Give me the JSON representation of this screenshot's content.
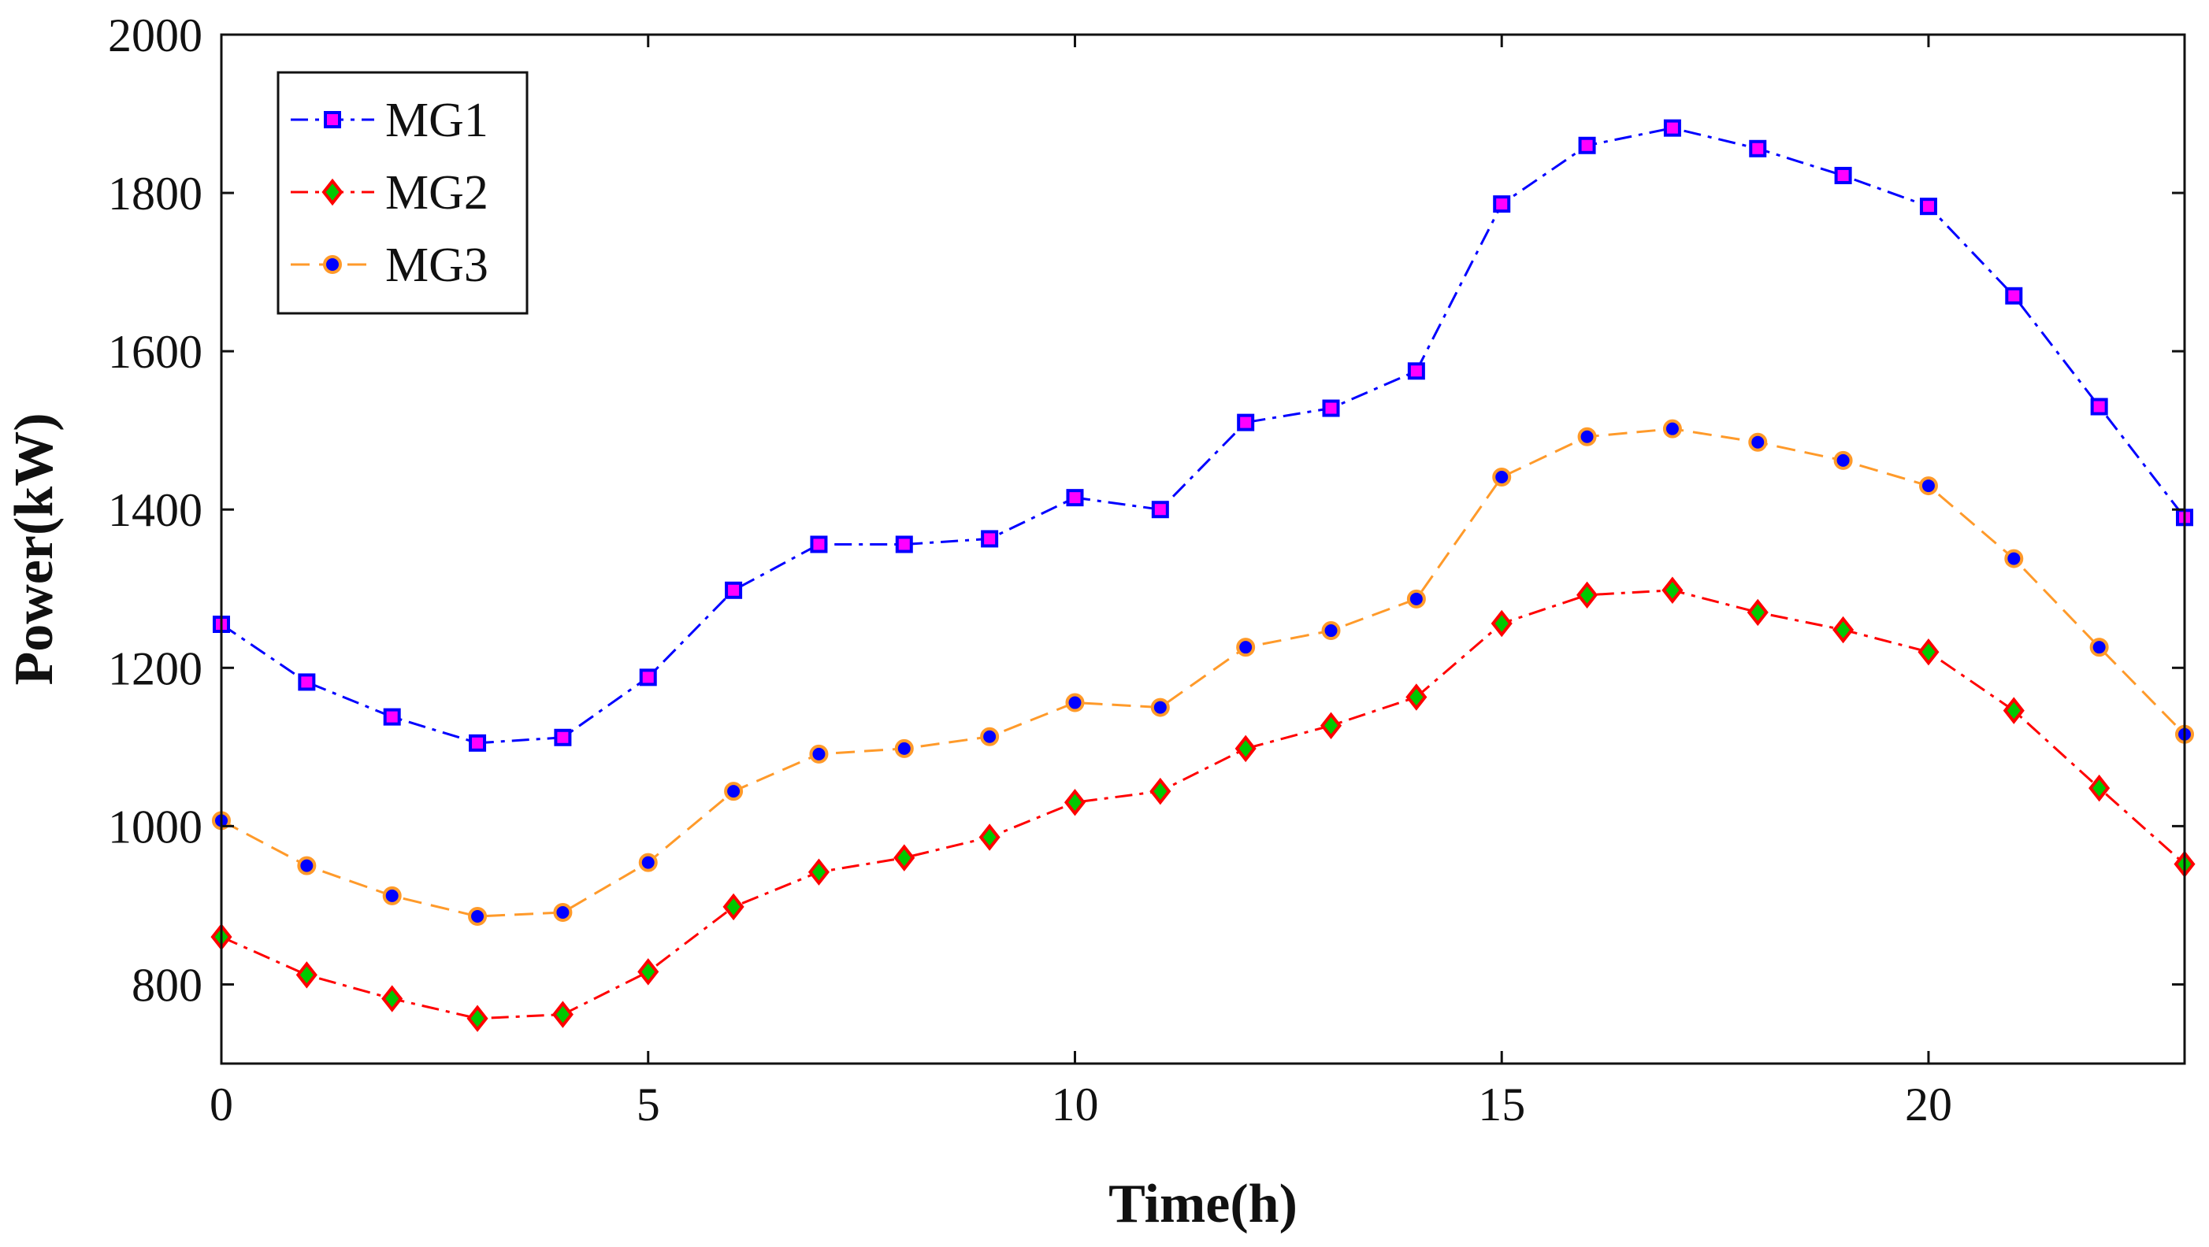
{
  "chart_data": {
    "type": "line",
    "title": "",
    "xlabel": "Time(h)",
    "ylabel": "Power(kW)",
    "xlim": [
      0,
      23
    ],
    "ylim": [
      700,
      2000
    ],
    "xticks": [
      0,
      5,
      10,
      15,
      20
    ],
    "yticks": [
      800,
      1000,
      1200,
      1400,
      1600,
      1800,
      2000
    ],
    "grid": false,
    "legend_position": "top-left",
    "x": [
      0,
      1,
      2,
      3,
      4,
      5,
      6,
      7,
      8,
      9,
      10,
      11,
      12,
      13,
      14,
      15,
      16,
      17,
      18,
      19,
      20,
      21,
      22,
      23
    ],
    "series": [
      {
        "name": "MG1",
        "marker": "square",
        "line_color": "#0000ff",
        "marker_face": "#ff00ff",
        "marker_edge": "#0000ff",
        "dash": "dash-dot",
        "values": [
          1255,
          1182,
          1138,
          1105,
          1112,
          1188,
          1298,
          1356,
          1356,
          1363,
          1415,
          1400,
          1510,
          1528,
          1575,
          1786,
          1860,
          1882,
          1856,
          1822,
          1783,
          1670,
          1530,
          1390
        ]
      },
      {
        "name": "MG2",
        "marker": "diamond",
        "line_color": "#ff0000",
        "marker_face": "#00c800",
        "marker_edge": "#ff0000",
        "dash": "dash-dot",
        "values": [
          860,
          812,
          782,
          757,
          762,
          816,
          898,
          942,
          960,
          986,
          1030,
          1044,
          1098,
          1127,
          1163,
          1256,
          1292,
          1298,
          1270,
          1248,
          1220,
          1146,
          1048,
          952
        ]
      },
      {
        "name": "MG3",
        "marker": "circle",
        "line_color": "#ff9a2a",
        "marker_face": "#0000ff",
        "marker_edge": "#ff9a2a",
        "dash": "dashed",
        "values": [
          1007,
          950,
          912,
          886,
          891,
          954,
          1044,
          1091,
          1098,
          1113,
          1156,
          1150,
          1226,
          1247,
          1287,
          1441,
          1492,
          1502,
          1485,
          1462,
          1430,
          1338,
          1226,
          1116
        ]
      }
    ]
  }
}
